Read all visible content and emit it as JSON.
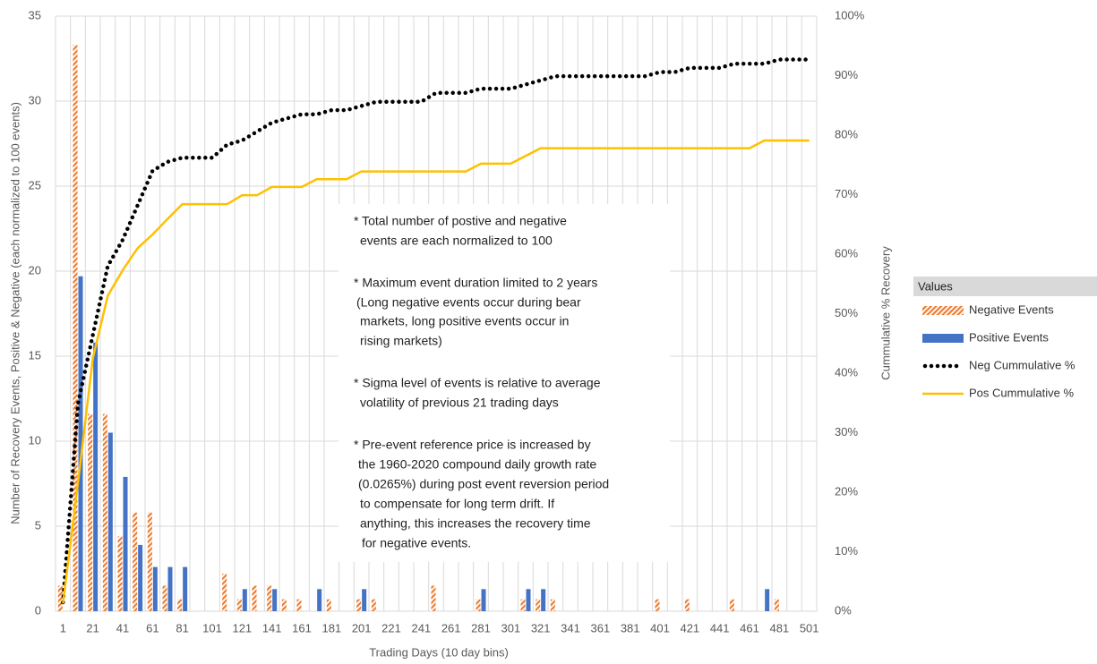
{
  "chart_data": {
    "type": "bar",
    "x_label": "Trading Days (10 day bins)",
    "y_label": "Number of Recovery Events, Positive & Negative (each normalized to 100 events)",
    "y2_label": "Cummulative % Recovery",
    "categories": [
      "1",
      null,
      "21",
      null,
      "41",
      null,
      "61",
      null,
      "81",
      null,
      "101",
      null,
      "121",
      null,
      "141",
      null,
      "161",
      null,
      "181",
      null,
      "201",
      null,
      "221",
      null,
      "241",
      null,
      "261",
      null,
      "281",
      null,
      "301",
      null,
      "321",
      null,
      "341",
      null,
      "361",
      null,
      "381",
      null,
      "401",
      null,
      "421",
      null,
      "441",
      null,
      "461",
      null,
      "481",
      null,
      "501"
    ],
    "ylim": [
      0,
      35
    ],
    "yticks": [
      0,
      5,
      10,
      15,
      20,
      25,
      30,
      35
    ],
    "y2lim": [
      0,
      100
    ],
    "y2ticks": [
      {
        "value": 0,
        "label": "0%"
      },
      {
        "value": 10,
        "label": "10%"
      },
      {
        "value": 20,
        "label": "20%"
      },
      {
        "value": 30,
        "label": "30%"
      },
      {
        "value": 40,
        "label": "40%"
      },
      {
        "value": 50,
        "label": "50%"
      },
      {
        "value": 60,
        "label": "60%"
      },
      {
        "value": 70,
        "label": "70%"
      },
      {
        "value": 80,
        "label": "80%"
      },
      {
        "value": 90,
        "label": "90%"
      },
      {
        "value": 100,
        "label": "100%"
      }
    ],
    "grid": true,
    "legend": {
      "title": "Values",
      "position": "right"
    },
    "series": [
      {
        "name": "Negative Events",
        "type": "bar",
        "color": "#ed7d31",
        "pattern": "hatch",
        "values": [
          1.5,
          33.3,
          11.6,
          11.6,
          4.4,
          5.8,
          5.8,
          1.5,
          0.7,
          0,
          0,
          2.2,
          0.7,
          1.5,
          1.5,
          0.7,
          0.7,
          0,
          0.7,
          0,
          0.7,
          0.7,
          0,
          0,
          0,
          1.5,
          0,
          0,
          0.7,
          0,
          0,
          0.7,
          0.7,
          0.7,
          0,
          0,
          0,
          0,
          0,
          0,
          0.7,
          0,
          0.7,
          0,
          0,
          0.7,
          0,
          0,
          0.7,
          0,
          0
        ]
      },
      {
        "name": "Positive Events",
        "type": "bar",
        "color": "#4472c4",
        "values": [
          0,
          19.7,
          15.8,
          10.5,
          7.9,
          3.9,
          2.6,
          2.6,
          2.6,
          0,
          0,
          0,
          1.3,
          0,
          1.3,
          0,
          0,
          1.3,
          0,
          0,
          1.3,
          0,
          0,
          0,
          0,
          0,
          0,
          0,
          1.3,
          0,
          0,
          1.3,
          1.3,
          0,
          0,
          0,
          0,
          0,
          0,
          0,
          0,
          0,
          0,
          0,
          0,
          0,
          0,
          1.3,
          0,
          0,
          0
        ]
      },
      {
        "name": "Neg Cummulative %",
        "type": "line",
        "axis": "y2",
        "color": "#000000",
        "style": "dotted",
        "values": [
          1.5,
          34.8,
          46.4,
          58,
          62.4,
          68.2,
          74,
          75.5,
          76.2,
          76.2,
          76.2,
          78.4,
          79.1,
          80.6,
          82.1,
          82.8,
          83.5,
          83.5,
          84.2,
          84.2,
          84.9,
          85.6,
          85.6,
          85.6,
          85.6,
          87.1,
          87.1,
          87.1,
          87.8,
          87.8,
          87.8,
          88.5,
          89.2,
          89.9,
          89.9,
          89.9,
          89.9,
          89.9,
          89.9,
          89.9,
          90.6,
          90.6,
          91.3,
          91.3,
          91.3,
          92,
          92,
          92,
          92.7,
          92.7,
          92.7
        ]
      },
      {
        "name": "Pos Cummulative %",
        "type": "line",
        "axis": "y2",
        "color": "#ffc000",
        "style": "solid",
        "values": [
          1.3,
          21.5,
          42.5,
          53,
          57.3,
          61,
          63.3,
          65.9,
          68.4,
          68.4,
          68.4,
          68.4,
          69.9,
          69.9,
          71.3,
          71.3,
          71.3,
          72.6,
          72.6,
          72.6,
          73.9,
          73.9,
          73.9,
          73.9,
          73.9,
          73.9,
          73.9,
          73.9,
          75.2,
          75.2,
          75.2,
          76.5,
          77.8,
          77.8,
          77.8,
          77.8,
          77.8,
          77.8,
          77.8,
          77.8,
          77.8,
          77.8,
          77.8,
          77.8,
          77.8,
          77.8,
          77.8,
          79.1,
          79.1,
          79.1,
          79.1
        ]
      }
    ],
    "annotation": [
      "* Total number of postive and negative",
      "events are each normalized to 100",
      "* Maximum event duration limited to 2 years",
      "(Long negative events occur during bear",
      "markets, long positive events occur in",
      "rising markets)",
      "* Sigma level of events is relative to average",
      "volatility of previous 21 trading days",
      "* Pre-event reference price is increased by",
      "the 1960-2020 compound daily growth rate",
      "(0.0265%) during post event reversion period",
      "to compensate for long term drift. If",
      "anything, this increases the recovery time",
      "for negative events."
    ]
  }
}
